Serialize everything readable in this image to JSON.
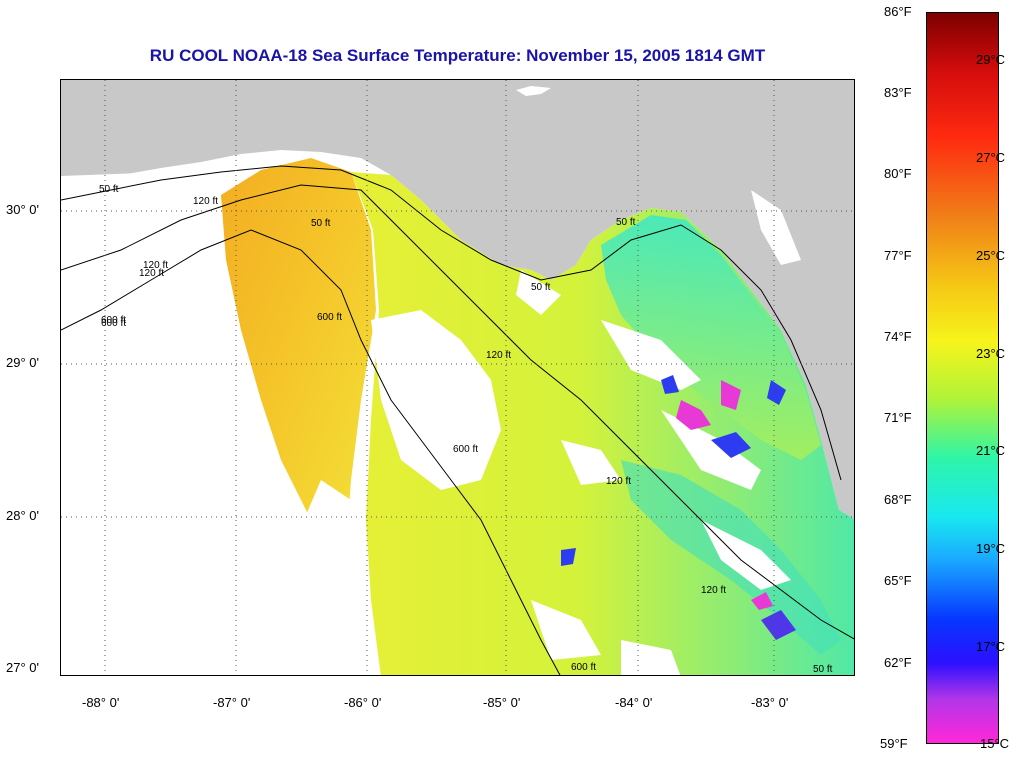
{
  "title": "RU COOL  NOAA-18  Sea Surface Temperature:  November 15, 2005 1814 GMT",
  "axes": {
    "lon_labels": [
      "-88° 0'",
      "-87° 0'",
      "-86° 0'",
      "-85° 0'",
      "-84° 0'",
      "-83° 0'"
    ],
    "lat_labels": [
      "30° 0'",
      "29° 0'",
      "28° 0'",
      "27° 0'"
    ]
  },
  "colorbar": {
    "fahrenheit": [
      "86°F",
      "83°F",
      "80°F",
      "77°F",
      "74°F",
      "71°F",
      "68°F",
      "65°F",
      "62°F",
      "59°F"
    ],
    "celsius": [
      "29°C",
      "27°C",
      "25°C",
      "23°C",
      "21°C",
      "19°C",
      "17°C",
      "15°C"
    ]
  },
  "contours": [
    "50 ft",
    "120 ft",
    "600 ft",
    "50 ft",
    "120 ft",
    "600 ft",
    "600 ft",
    "120 ft",
    "50 ft",
    "50 ft",
    "120 ft",
    "120 ft",
    "600 ft",
    "50 ft",
    "120 ft",
    "600 ft"
  ],
  "colors": {
    "land": "#c8c8c8",
    "title": "#1a14a8",
    "warm": "#f2b024",
    "mid": "#dcef3c",
    "cool": "#46e8b0",
    "cold": "#2d3cf0",
    "coldest": "#e838d6"
  }
}
